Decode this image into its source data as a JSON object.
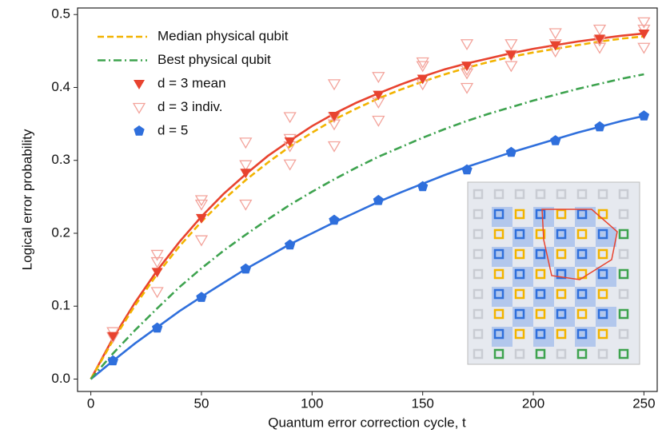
{
  "chart_data": {
    "type": "line",
    "xlabel": "Quantum error correction cycle, t",
    "ylabel": "Logical error probability",
    "xlim": [
      -6,
      256
    ],
    "ylim": [
      -0.017,
      0.509
    ],
    "xticks": [
      0,
      50,
      100,
      150,
      200,
      250
    ],
    "yticks": [
      {
        "value": 0,
        "label": "0.0"
      },
      0.1,
      0.2,
      0.3,
      0.4,
      0.5
    ],
    "legend": "upper left",
    "series": [
      {
        "name": "Median physical qubit",
        "color": "#f2b300",
        "style": "dashed",
        "x": [
          0,
          10,
          20,
          30,
          40,
          50,
          60,
          70,
          80,
          90,
          100,
          110,
          120,
          130,
          140,
          150,
          160,
          170,
          180,
          190,
          200,
          210,
          220,
          230,
          240,
          250
        ],
        "values": [
          0,
          0.053,
          0.101,
          0.144,
          0.182,
          0.216,
          0.246,
          0.273,
          0.297,
          0.319,
          0.338,
          0.356,
          0.371,
          0.385,
          0.397,
          0.408,
          0.418,
          0.427,
          0.435,
          0.442,
          0.448,
          0.453,
          0.458,
          0.463,
          0.467,
          0.47
        ]
      },
      {
        "name": "Best physical qubit",
        "color": "#3ea34f",
        "style": "dashdot",
        "x": [
          0,
          10,
          20,
          30,
          40,
          50,
          60,
          70,
          80,
          90,
          100,
          110,
          120,
          130,
          140,
          150,
          160,
          170,
          180,
          190,
          200,
          210,
          220,
          230,
          240,
          250
        ],
        "values": [
          0,
          0.035,
          0.067,
          0.097,
          0.126,
          0.152,
          0.176,
          0.198,
          0.219,
          0.239,
          0.257,
          0.274,
          0.29,
          0.305,
          0.318,
          0.331,
          0.343,
          0.354,
          0.364,
          0.373,
          0.382,
          0.39,
          0.398,
          0.405,
          0.412,
          0.418
        ]
      },
      {
        "name": "d = 3 mean",
        "color": "#e8432f",
        "marker": "triangle",
        "label_color": "#e8432f",
        "x": [
          10,
          30,
          50,
          70,
          90,
          110,
          130,
          150,
          170,
          190,
          210,
          230,
          250
        ],
        "values": [
          0.059,
          0.147,
          0.221,
          0.283,
          0.326,
          0.361,
          0.39,
          0.412,
          0.43,
          0.445,
          0.458,
          0.467,
          0.474
        ]
      },
      {
        "name": "d = 3 indiv.",
        "color": "#f3a39b",
        "marker": "open-triangle",
        "label_color": "#f3a39b",
        "x": [
          10,
          10,
          30,
          30,
          30,
          50,
          50,
          50,
          70,
          70,
          70,
          90,
          90,
          90,
          90,
          110,
          110,
          110,
          110,
          130,
          130,
          130,
          150,
          150,
          150,
          170,
          170,
          170,
          170,
          190,
          190,
          190,
          210,
          210,
          210,
          230,
          230,
          230,
          250,
          250,
          250
        ],
        "values": [
          0.065,
          0.058,
          0.171,
          0.161,
          0.12,
          0.246,
          0.24,
          0.191,
          0.325,
          0.294,
          0.24,
          0.36,
          0.33,
          0.32,
          0.295,
          0.405,
          0.36,
          0.35,
          0.32,
          0.415,
          0.38,
          0.355,
          0.435,
          0.43,
          0.405,
          0.46,
          0.425,
          0.42,
          0.4,
          0.46,
          0.445,
          0.43,
          0.475,
          0.46,
          0.45,
          0.48,
          0.465,
          0.455,
          0.49,
          0.48,
          0.455
        ]
      },
      {
        "name": "d = 5",
        "color": "#2f6fdc",
        "marker": "pentagon",
        "label_color": "#2f6fdc",
        "x": [
          10,
          30,
          50,
          70,
          90,
          110,
          130,
          150,
          170,
          190,
          210,
          230,
          250
        ],
        "values": [
          0.025,
          0.07,
          0.112,
          0.151,
          0.184,
          0.218,
          0.245,
          0.264,
          0.287,
          0.311,
          0.327,
          0.346,
          0.361
        ]
      },
      {
        "color": "#e8432f",
        "style": "solid",
        "x": [
          0,
          10,
          20,
          30,
          40,
          50,
          60,
          70,
          80,
          90,
          100,
          110,
          120,
          130,
          140,
          150,
          160,
          170,
          180,
          190,
          200,
          210,
          220,
          230,
          240,
          250
        ],
        "values": [
          0,
          0.056,
          0.105,
          0.149,
          0.188,
          0.223,
          0.254,
          0.281,
          0.306,
          0.327,
          0.347,
          0.364,
          0.379,
          0.392,
          0.404,
          0.415,
          0.425,
          0.433,
          0.44,
          0.447,
          0.453,
          0.458,
          0.463,
          0.467,
          0.471,
          0.474
        ]
      },
      {
        "color": "#2f6fdc",
        "style": "solid",
        "x": [
          0,
          10,
          20,
          30,
          40,
          50,
          60,
          70,
          80,
          90,
          100,
          110,
          120,
          130,
          140,
          150,
          160,
          170,
          180,
          190,
          200,
          210,
          220,
          230,
          240,
          250
        ],
        "values": [
          0,
          0.025,
          0.049,
          0.071,
          0.093,
          0.113,
          0.132,
          0.151,
          0.168,
          0.185,
          0.2,
          0.215,
          0.229,
          0.243,
          0.256,
          0.268,
          0.28,
          0.291,
          0.301,
          0.311,
          0.32,
          0.329,
          0.338,
          0.346,
          0.354,
          0.361
        ]
      }
    ]
  }
}
